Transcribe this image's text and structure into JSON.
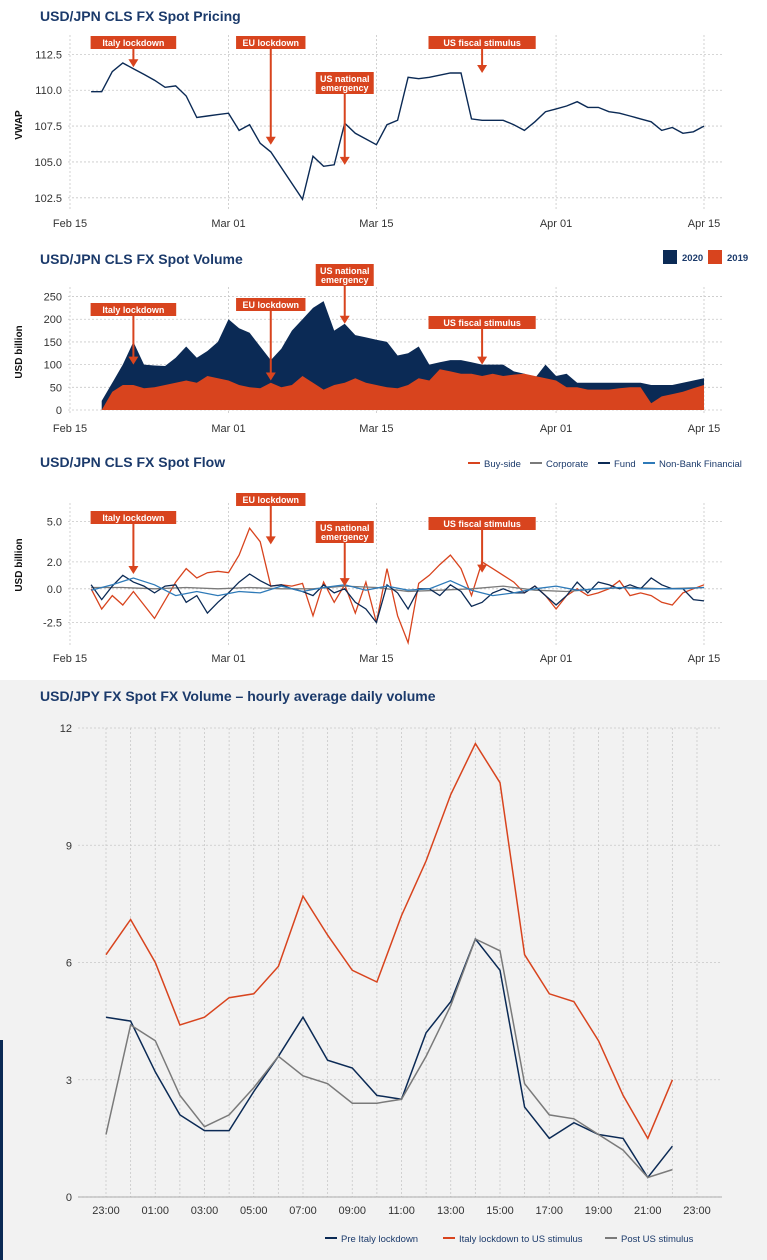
{
  "colors": {
    "navy": "#0b2a55",
    "orange": "#d8441e",
    "gray": "#7a7a7a",
    "blue": "#2e7ab8",
    "title": "#1b3a6b",
    "annotation": "#d8441e"
  },
  "chart_data": [
    {
      "type": "line",
      "title": "USD/JPN CLS FX Spot Pricing",
      "xlabel": "",
      "ylabel": "VWAP",
      "x_ticks": [
        "Feb 15",
        "Mar 01",
        "Mar 15",
        "Apr 01",
        "Apr 15"
      ],
      "x_tick_days": [
        0,
        15,
        29,
        46,
        60
      ],
      "xlim_days": [
        0,
        60
      ],
      "ylim": [
        102,
        113.5
      ],
      "y_ticks": [
        "102.5",
        "105.0",
        "107.5",
        "110.0",
        "112.5"
      ],
      "y_tick_values": [
        102.5,
        105.0,
        107.5,
        110.0,
        112.5
      ],
      "grid": true,
      "series": [
        {
          "color": "navy",
          "x_days": [
            2,
            3,
            4,
            5,
            6,
            7,
            8,
            9,
            10,
            11,
            12,
            13,
            14,
            15,
            16,
            17,
            18,
            19,
            22,
            23,
            24,
            25,
            26,
            27,
            28,
            29,
            30,
            31,
            32,
            33,
            34,
            36,
            37,
            38,
            39,
            40,
            41,
            42,
            43,
            44,
            45,
            46,
            47,
            48,
            49,
            50,
            51,
            52,
            53,
            54,
            55,
            56,
            57,
            58,
            59,
            60
          ],
          "values": [
            109.9,
            109.9,
            111.3,
            111.9,
            111.5,
            111.1,
            110.7,
            110.2,
            110.3,
            109.6,
            108.1,
            108.2,
            108.3,
            108.4,
            107.2,
            107.6,
            106.3,
            105.7,
            102.4,
            105.4,
            104.7,
            104.8,
            107.7,
            107.0,
            106.6,
            106.2,
            107.6,
            107.9,
            110.9,
            110.8,
            110.9,
            111.2,
            111.2,
            108.0,
            107.9,
            107.9,
            107.9,
            107.6,
            107.2,
            107.8,
            108.5,
            108.7,
            108.9,
            109.2,
            108.8,
            108.8,
            108.5,
            108.4,
            108.2,
            108.0,
            107.8,
            107.2,
            107.4,
            107.0,
            107.1,
            107.5
          ]
        }
      ],
      "annotations": [
        {
          "label": "Italy lockdown",
          "x_day": 6,
          "y": 111.6
        },
        {
          "label": "EU lockdown",
          "x_day": 19,
          "y": 106.2
        },
        {
          "label": "US national emergency",
          "x_day": 26,
          "y": 104.8
        },
        {
          "label": "US fiscal stimulus",
          "x_day": 39,
          "y": 111.2
        }
      ]
    },
    {
      "type": "area",
      "title": "USD/JPN CLS FX Spot Volume",
      "xlabel": "",
      "ylabel": "USD billion",
      "x_ticks": [
        "Feb 15",
        "Mar 01",
        "Mar 15",
        "Apr 01",
        "Apr 15"
      ],
      "x_tick_days": [
        0,
        15,
        29,
        46,
        60
      ],
      "xlim_days": [
        0,
        60
      ],
      "ylim": [
        0,
        260
      ],
      "y_ticks": [
        "0",
        "50",
        "100",
        "150",
        "200",
        "250"
      ],
      "y_tick_values": [
        0,
        50,
        100,
        150,
        200,
        250
      ],
      "grid": true,
      "legend": {
        "position": "top-right",
        "entries": [
          "2020",
          "2019"
        ]
      },
      "series": [
        {
          "name": "2020",
          "color": "navy",
          "x_days": [
            3,
            4,
            5,
            6,
            7,
            8,
            9,
            10,
            11,
            12,
            13,
            14,
            15,
            16,
            17,
            18,
            19,
            20,
            21,
            22,
            23,
            24,
            25,
            26,
            27,
            28,
            29,
            30,
            31,
            32,
            33,
            34,
            35,
            36,
            37,
            38,
            39,
            40,
            41,
            42,
            43,
            44,
            45,
            46,
            47,
            48,
            49,
            50,
            51,
            52,
            53,
            54,
            55,
            56,
            57,
            58,
            59,
            60
          ],
          "values": [
            20,
            60,
            100,
            150,
            100,
            98,
            97,
            115,
            140,
            115,
            130,
            150,
            200,
            180,
            170,
            140,
            110,
            135,
            175,
            200,
            225,
            240,
            175,
            190,
            165,
            160,
            155,
            150,
            120,
            125,
            140,
            100,
            105,
            110,
            110,
            105,
            100,
            100,
            100,
            85,
            80,
            70,
            100,
            75,
            80,
            60,
            60,
            60,
            60,
            60,
            60,
            60,
            55,
            55,
            55,
            60,
            65,
            70
          ]
        },
        {
          "name": "2019",
          "color": "orange",
          "x_days": [
            3,
            4,
            5,
            6,
            7,
            8,
            9,
            10,
            11,
            12,
            13,
            14,
            15,
            16,
            17,
            18,
            19,
            20,
            21,
            22,
            23,
            24,
            25,
            26,
            27,
            28,
            29,
            30,
            31,
            32,
            33,
            34,
            35,
            36,
            37,
            38,
            39,
            40,
            41,
            42,
            43,
            44,
            45,
            46,
            47,
            48,
            49,
            50,
            51,
            52,
            53,
            54,
            55,
            56,
            57,
            58,
            59,
            60
          ],
          "values": [
            0,
            40,
            55,
            55,
            48,
            50,
            55,
            60,
            65,
            60,
            75,
            70,
            65,
            55,
            50,
            48,
            60,
            50,
            55,
            75,
            60,
            45,
            55,
            60,
            70,
            60,
            55,
            50,
            48,
            55,
            70,
            65,
            90,
            85,
            80,
            80,
            75,
            80,
            75,
            78,
            80,
            75,
            70,
            65,
            50,
            50,
            45,
            45,
            45,
            48,
            50,
            50,
            15,
            30,
            35,
            40,
            48,
            55
          ]
        }
      ],
      "annotations": [
        {
          "label": "Italy lockdown",
          "x_day": 6,
          "y": 100
        },
        {
          "label": "EU lockdown",
          "x_day": 19,
          "y": 65
        },
        {
          "label": "US national emergency",
          "x_day": 26,
          "y": 190
        },
        {
          "label": "US fiscal stimulus",
          "x_day": 39,
          "y": 100
        }
      ]
    },
    {
      "type": "line",
      "title": "USD/JPN CLS FX Spot Flow",
      "xlabel": "",
      "ylabel": "USD billion",
      "x_ticks": [
        "Feb 15",
        "Mar 01",
        "Mar 15",
        "Apr 01",
        "Apr 15"
      ],
      "x_tick_days": [
        0,
        15,
        29,
        46,
        60
      ],
      "xlim_days": [
        0,
        60
      ],
      "ylim": [
        -3.8,
        6
      ],
      "y_ticks": [
        "-2.5",
        "0.0",
        "2.0",
        "5.0"
      ],
      "y_tick_values": [
        -2.5,
        0.0,
        2.0,
        5.0
      ],
      "grid": true,
      "legend": {
        "position": "top-right",
        "entries": [
          "Buy-side",
          "Corporate",
          "Fund",
          "Non-Bank Financial"
        ]
      },
      "series": [
        {
          "name": "Buy-side",
          "color": "orange",
          "x_days": [
            2,
            3,
            4,
            5,
            6,
            8,
            10,
            11,
            12,
            13,
            14,
            15,
            16,
            17,
            18,
            19,
            20,
            21,
            22,
            23,
            24,
            25,
            26,
            27,
            28,
            29,
            30,
            31,
            32,
            33,
            34,
            35,
            36,
            37,
            38,
            39,
            40,
            41,
            42,
            43,
            44,
            45,
            46,
            47,
            48,
            49,
            50,
            51,
            52,
            53,
            54,
            55,
            56,
            57,
            58,
            59,
            60
          ],
          "values": [
            0,
            -1.5,
            -0.5,
            -1.2,
            -0.2,
            -2.2,
            0.5,
            1.5,
            0.8,
            1.2,
            1.3,
            1.2,
            2.5,
            4.5,
            3.5,
            0.2,
            0.3,
            0.2,
            0.4,
            -2.0,
            0.5,
            -1.0,
            0.3,
            -1.8,
            0.5,
            -2.5,
            1.5,
            -2.0,
            -4.0,
            0.4,
            1.0,
            1.8,
            2.5,
            1.5,
            -0.5,
            2.0,
            1.5,
            1.0,
            0.5,
            -0.3,
            0.2,
            -0.5,
            -1.5,
            -0.5,
            0,
            -0.5,
            -0.3,
            0,
            0.6,
            -0.5,
            -0.3,
            -0.5,
            -1.0,
            -1.2,
            -0.3,
            0,
            0.3
          ]
        },
        {
          "name": "Corporate",
          "color": "gray",
          "x_days": [
            2,
            5,
            8,
            11,
            14,
            17,
            20,
            23,
            26,
            29,
            32,
            35,
            38,
            41,
            44,
            47,
            50,
            53,
            56,
            60
          ],
          "values": [
            0.1,
            0.1,
            0.0,
            0.1,
            0.0,
            0.1,
            0.0,
            0.0,
            0.2,
            0.1,
            -0.2,
            -0.1,
            0.0,
            0.2,
            -0.1,
            -0.2,
            0.0,
            0.1,
            0.0,
            0.1
          ]
        },
        {
          "name": "Fund",
          "color": "navy",
          "x_days": [
            2,
            3,
            4,
            5,
            6,
            7,
            8,
            9,
            10,
            11,
            12,
            13,
            14,
            15,
            16,
            17,
            18,
            19,
            20,
            21,
            22,
            23,
            24,
            25,
            26,
            27,
            28,
            29,
            30,
            31,
            32,
            33,
            34,
            35,
            36,
            37,
            38,
            39,
            40,
            41,
            42,
            43,
            44,
            45,
            46,
            47,
            48,
            49,
            50,
            51,
            52,
            53,
            54,
            55,
            56,
            57,
            58,
            59,
            60
          ],
          "values": [
            0.3,
            -0.8,
            0.2,
            1.0,
            0.5,
            0.2,
            -0.3,
            0.2,
            0.3,
            -1.0,
            -0.5,
            -1.8,
            -1.0,
            -0.3,
            0.5,
            1.1,
            0.6,
            0.2,
            0.3,
            0.0,
            -0.2,
            -0.5,
            0.3,
            -0.3,
            0.0,
            -1.0,
            -1.5,
            -2.5,
            0.3,
            -0.3,
            -1.5,
            0.0,
            0.0,
            -0.5,
            0.3,
            -0.2,
            -1.3,
            -1.0,
            -0.3,
            0.0,
            -0.3,
            -0.3,
            0.2,
            -0.5,
            -1.2,
            -0.5,
            0.5,
            -0.3,
            0.5,
            0.3,
            0.0,
            0.3,
            0.0,
            0.8,
            0.3,
            0.0,
            0.0,
            -0.8,
            -0.9
          ]
        },
        {
          "name": "Non-Bank Financial",
          "color": "blue",
          "x_days": [
            2,
            4,
            6,
            8,
            10,
            12,
            14,
            16,
            18,
            20,
            22,
            24,
            26,
            28,
            30,
            32,
            34,
            36,
            38,
            40,
            42,
            44,
            46,
            48,
            50,
            52,
            54,
            56,
            58,
            60
          ],
          "values": [
            -0.1,
            0.3,
            0.8,
            0.3,
            -0.5,
            -0.2,
            -0.5,
            -0.2,
            -0.3,
            0.2,
            -0.2,
            0.1,
            0.3,
            -0.1,
            0.2,
            -0.1,
            0.0,
            0.6,
            -0.1,
            -0.5,
            -0.3,
            0.0,
            0.2,
            -0.1,
            0.0,
            0.1,
            0.0,
            0.0,
            0.0,
            0.1
          ]
        }
      ],
      "annotations": [
        {
          "label": "Italy lockdown",
          "x_day": 6,
          "y": 1.1
        },
        {
          "label": "EU lockdown",
          "x_day": 19,
          "y": 3.3
        },
        {
          "label": "US national emergency",
          "x_day": 26,
          "y": 0.2
        },
        {
          "label": "US fiscal stimulus",
          "x_day": 39,
          "y": 1.2
        }
      ]
    },
    {
      "type": "line",
      "title": "USD/JPY FX Spot FX Volume – hourly average daily volume",
      "xlabel": "",
      "ylabel": "",
      "categories": [
        "23:00",
        "00:00",
        "01:00",
        "02:00",
        "03:00",
        "04:00",
        "05:00",
        "06:00",
        "07:00",
        "08:00",
        "09:00",
        "10:00",
        "11:00",
        "12:00",
        "13:00",
        "14:00",
        "15:00",
        "16:00",
        "17:00",
        "18:00",
        "19:00",
        "20:00",
        "21:00",
        "22:00",
        "23:00"
      ],
      "x_tick_labels": [
        "23:00",
        "01:00",
        "03:00",
        "05:00",
        "07:00",
        "09:00",
        "11:00",
        "13:00",
        "15:00",
        "17:00",
        "19:00",
        "21:00",
        "23:00"
      ],
      "ylim": [
        0,
        12
      ],
      "y_ticks": [
        "0",
        "3",
        "6",
        "9",
        "12"
      ],
      "y_tick_values": [
        0,
        3,
        6,
        9,
        12
      ],
      "grid": true,
      "legend": {
        "position": "bottom-right",
        "entries": [
          "Pre Italy lockdown",
          "Italy lockdown to US stimulus",
          "Post US stimulus"
        ]
      },
      "series": [
        {
          "name": "Pre Italy lockdown",
          "color": "navy",
          "values": [
            4.6,
            4.5,
            3.2,
            2.1,
            1.7,
            1.7,
            2.7,
            3.6,
            4.6,
            3.5,
            3.3,
            2.6,
            2.5,
            4.2,
            5.0,
            6.6,
            5.8,
            2.3,
            1.5,
            1.9,
            1.6,
            1.5,
            0.5,
            1.3,
            null
          ]
        },
        {
          "name": "Italy lockdown to US stimulus",
          "color": "orange",
          "values": [
            6.2,
            7.1,
            6.0,
            4.4,
            4.6,
            5.1,
            5.2,
            5.9,
            7.7,
            6.7,
            5.8,
            5.5,
            7.2,
            8.6,
            10.3,
            11.6,
            10.6,
            6.2,
            5.2,
            5.0,
            4.0,
            2.6,
            1.5,
            3.0,
            null
          ]
        },
        {
          "name": "Post US stimulus",
          "color": "gray",
          "values": [
            1.6,
            4.4,
            4.0,
            2.6,
            1.8,
            2.1,
            2.8,
            3.6,
            3.1,
            2.9,
            2.4,
            2.4,
            2.5,
            3.6,
            4.9,
            6.6,
            6.3,
            2.9,
            2.1,
            2.0,
            1.6,
            1.2,
            0.5,
            0.7,
            null
          ]
        }
      ]
    }
  ]
}
